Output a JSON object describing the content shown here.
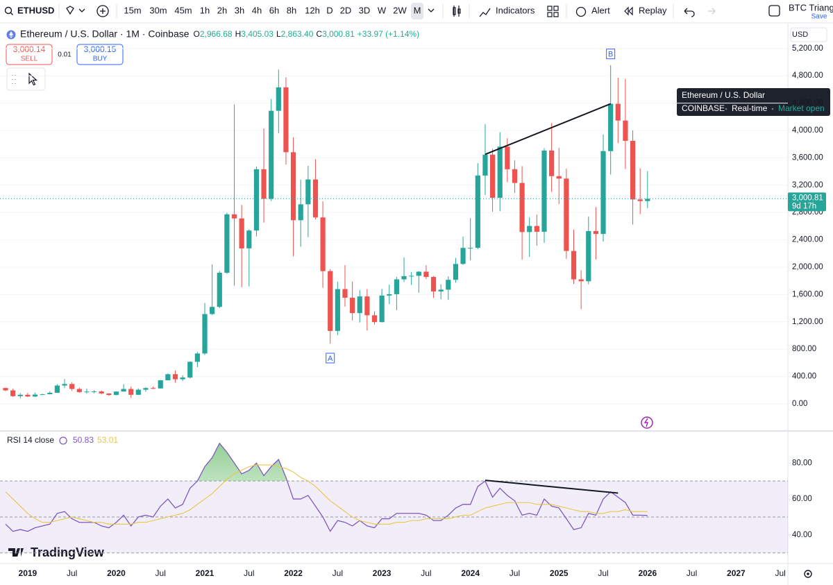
{
  "toolbar": {
    "symbol": "ETHUSD",
    "intervals": [
      "15m",
      "30m",
      "45m",
      "1h",
      "2h",
      "3h",
      "4h",
      "6h",
      "8h",
      "12h",
      "D",
      "2D",
      "3D",
      "W",
      "2W",
      "M"
    ],
    "active_interval": "M",
    "buttons": [
      "Indicators",
      "Alert",
      "Replay"
    ],
    "layout_name": "BTC Triang",
    "save": "Save"
  },
  "quote": {
    "title": "Ethereum / U.S. Dollar · 1M · Coinbase",
    "ohlc": [
      {
        "label": "O",
        "value": "2,966.68"
      },
      {
        "label": "H",
        "value": "3,405.03"
      },
      {
        "label": "L",
        "value": "2,863.40"
      },
      {
        "label": "C",
        "value": "3,000.81"
      }
    ],
    "change": "+33.97 (+1.14%)",
    "sell_price": "3,000.14",
    "sell": "SELL",
    "spread": "0.01",
    "buy_price": "3,000.15",
    "buy": "BUY"
  },
  "tooltip": {
    "title": "Ethereum / U.S. Dollar",
    "exchange": "COINBASE",
    "feed": "Real-time",
    "status": "Market open"
  },
  "currency": "USD",
  "brand": "TradingView",
  "chart_data": [
    {
      "type": "candlestick",
      "x": [
        "2018-10",
        "2018-11",
        "2018-12",
        "2019-01",
        "2019-02",
        "2019-03",
        "2019-04",
        "2019-05",
        "2019-06",
        "2019-07",
        "2019-08",
        "2019-09",
        "2019-10",
        "2019-11",
        "2019-12",
        "2020-01",
        "2020-02",
        "2020-03",
        "2020-04",
        "2020-05",
        "2020-06",
        "2020-07",
        "2020-08",
        "2020-09",
        "2020-10",
        "2020-11",
        "2020-12",
        "2021-01",
        "2021-02",
        "2021-03",
        "2021-04",
        "2021-05",
        "2021-06",
        "2021-07",
        "2021-08",
        "2021-09",
        "2021-10",
        "2021-11",
        "2021-12",
        "2022-01",
        "2022-02",
        "2022-03",
        "2022-04",
        "2022-05",
        "2022-06",
        "2022-07",
        "2022-08",
        "2022-09",
        "2022-10",
        "2022-11",
        "2022-12",
        "2023-01",
        "2023-02",
        "2023-03",
        "2023-04",
        "2023-05",
        "2023-06",
        "2023-07",
        "2023-08",
        "2023-09",
        "2023-10",
        "2023-11",
        "2023-12",
        "2024-01",
        "2024-02",
        "2024-03",
        "2024-04",
        "2024-05",
        "2024-06",
        "2024-07",
        "2024-08",
        "2024-09",
        "2024-10",
        "2024-11",
        "2024-12",
        "2025-01",
        "2025-02",
        "2025-03",
        "2025-04",
        "2025-05",
        "2025-06",
        "2025-07",
        "2025-08",
        "2025-09",
        "2025-10",
        "2025-11",
        "2025-12",
        "2026-01"
      ],
      "open": [
        232,
        197,
        113,
        133,
        107,
        136,
        141,
        162,
        268,
        291,
        218,
        172,
        180,
        182,
        152,
        130,
        180,
        218,
        133,
        207,
        231,
        226,
        345,
        434,
        360,
        386,
        615,
        737,
        1314,
        1419,
        1918,
        2773,
        2713,
        2275,
        2536,
        3433,
        3000,
        4288,
        4631,
        3682,
        2687,
        2920,
        3283,
        2728,
        1942,
        1067,
        1679,
        1553,
        1328,
        1572,
        1296,
        1196,
        1585,
        1605,
        1822,
        1869,
        1874,
        1934,
        1857,
        1645,
        1671,
        1815,
        2047,
        2282,
        2283,
        3340,
        3646,
        3015,
        3763,
        3433,
        3232,
        2514,
        2603,
        2518,
        3706,
        3332,
        3296,
        2237,
        1822,
        1794,
        2528,
        2486,
        3698,
        4390,
        4145,
        3848,
        2991,
        2966.68
      ],
      "high": [
        237,
        222,
        158,
        161,
        165,
        149,
        184,
        287,
        364,
        316,
        237,
        224,
        200,
        196,
        153,
        184,
        288,
        253,
        227,
        245,
        253,
        349,
        446,
        488,
        418,
        623,
        758,
        1476,
        2041,
        1945,
        2796,
        4380,
        2911,
        2554,
        3472,
        4028,
        4460,
        4891,
        4778,
        3900,
        3281,
        3483,
        3580,
        2964,
        1973,
        1788,
        2030,
        1790,
        1664,
        1679,
        1353,
        1680,
        1743,
        1857,
        2142,
        1928,
        1940,
        2029,
        1870,
        1750,
        1865,
        2136,
        2447,
        2717,
        3523,
        4093,
        3730,
        3975,
        3887,
        3562,
        3478,
        2728,
        2770,
        3740,
        4107,
        3745,
        3440,
        2550,
        1955,
        2738,
        2880,
        3941,
        4956,
        4770,
        4755,
        4000,
        3447,
        3405.03
      ],
      "low": [
        187,
        100,
        82,
        100,
        102,
        128,
        139,
        159,
        232,
        190,
        163,
        150,
        155,
        138,
        117,
        127,
        180,
        90,
        130,
        176,
        215,
        225,
        343,
        309,
        334,
        372,
        538,
        715,
        1301,
        1400,
        1902,
        1730,
        1707,
        1718,
        2450,
        2652,
        2970,
        3960,
        3500,
        2158,
        2300,
        2440,
        2700,
        1700,
        880,
        1006,
        1422,
        1220,
        1191,
        1073,
        1161,
        1191,
        1460,
        1370,
        1784,
        1741,
        1626,
        1825,
        1550,
        1531,
        1521,
        1773,
        2035,
        2100,
        2264,
        3056,
        2811,
        2817,
        3245,
        3087,
        2112,
        2150,
        2312,
        2357,
        3100,
        2923,
        2120,
        1755,
        1385,
        1750,
        2110,
        2373,
        3355,
        3815,
        3435,
        2623,
        2775,
        2863.4
      ],
      "close": [
        197,
        113,
        133,
        107,
        136,
        141,
        162,
        268,
        291,
        218,
        172,
        180,
        182,
        152,
        130,
        180,
        218,
        133,
        207,
        231,
        226,
        345,
        434,
        360,
        386,
        615,
        737,
        1314,
        1419,
        1918,
        2773,
        2713,
        2275,
        2536,
        3433,
        3000,
        4288,
        4631,
        3682,
        2687,
        2920,
        3283,
        2728,
        1942,
        1067,
        1679,
        1553,
        1328,
        1572,
        1296,
        1196,
        1585,
        1605,
        1822,
        1869,
        1874,
        1934,
        1857,
        1645,
        1671,
        1815,
        2047,
        2282,
        2283,
        3340,
        3646,
        3015,
        3763,
        3433,
        3232,
        2514,
        2603,
        2518,
        3706,
        3332,
        3296,
        2237,
        1822,
        1794,
        2528,
        2486,
        3698,
        4390,
        4145,
        3848,
        2991,
        2966.68,
        3000.81
      ],
      "up_color": "#26a69a",
      "down_color": "#ef5350",
      "ylim": [
        -386,
        5523
      ],
      "yticks": [
        {
          "value": 0,
          "label": "0.00"
        },
        {
          "value": 400,
          "label": "400.00"
        },
        {
          "value": 800,
          "label": "800.00"
        },
        {
          "value": 1200,
          "label": "1,200.00"
        },
        {
          "value": 1600,
          "label": "1,600.00"
        },
        {
          "value": 2000,
          "label": "2,000.00"
        },
        {
          "value": 2400,
          "label": "2,400.00"
        },
        {
          "value": 2800,
          "label": "2,800.00"
        },
        {
          "value": 3200,
          "label": "3,200.00"
        },
        {
          "value": 3600,
          "label": "3,600.00"
        },
        {
          "value": 4000,
          "label": "4,000.00"
        },
        {
          "value": 4400,
          "label": "4,400.00"
        },
        {
          "value": 4800,
          "label": "4,800.00"
        },
        {
          "value": 5200,
          "label": "5,200.00"
        }
      ],
      "xticks": [
        {
          "value": "2019-01",
          "label": "2019"
        },
        {
          "value": "2019-07",
          "label": "Jul"
        },
        {
          "value": "2020-01",
          "label": "2020"
        },
        {
          "value": "2020-07",
          "label": "Jul"
        },
        {
          "value": "2021-01",
          "label": "2021"
        },
        {
          "value": "2021-07",
          "label": "Jul"
        },
        {
          "value": "2022-01",
          "label": "2022"
        },
        {
          "value": "2022-07",
          "label": "Jul"
        },
        {
          "value": "2023-01",
          "label": "2023"
        },
        {
          "value": "2023-07",
          "label": "Jul"
        },
        {
          "value": "2024-01",
          "label": "2024"
        },
        {
          "value": "2024-07",
          "label": "Jul"
        },
        {
          "value": "2025-01",
          "label": "2025"
        },
        {
          "value": "2025-07",
          "label": "Jul"
        },
        {
          "value": "2026-01",
          "label": "2026"
        },
        {
          "value": "2026-07",
          "label": "Jul"
        },
        {
          "value": "2027-01",
          "label": "2027"
        },
        {
          "value": "2027-07",
          "label": "Jul"
        }
      ],
      "grid": true,
      "last_price_label": "3,000.81",
      "countdown": "9d 17h",
      "annotations": [
        {
          "text": "A",
          "x": "2022-06",
          "y": 670
        },
        {
          "text": "B",
          "x": "2025-08",
          "y": 5120
        }
      ],
      "trend_lines": [
        {
          "x": [
            "2024-03",
            "2025-08"
          ],
          "values": [
            3650,
            4390
          ]
        }
      ]
    },
    {
      "type": "line",
      "title": "RSI 14 close",
      "series": [
        {
          "color": "#7e57c2",
          "values": [
            46,
            42,
            43,
            42,
            44,
            45,
            46,
            52,
            53,
            49,
            47,
            47,
            47,
            45,
            44,
            47,
            51,
            45,
            50,
            51,
            50,
            56,
            60,
            55,
            57,
            66,
            70,
            78,
            83,
            91,
            86,
            80,
            74,
            76,
            80,
            73,
            78,
            82,
            72,
            60,
            60,
            62,
            56,
            50,
            42,
            48,
            47,
            45,
            48,
            45,
            44,
            49,
            49,
            52,
            52,
            52,
            52,
            51,
            48,
            48,
            51,
            55,
            57,
            57,
            67,
            70,
            61,
            66,
            62,
            59,
            51,
            52,
            51,
            60,
            56,
            55,
            49,
            43,
            44,
            52,
            51,
            60,
            64,
            61,
            58,
            51,
            51,
            50.83
          ]
        },
        {
          "color": "#e8c547",
          "values": [
            64,
            60,
            56,
            52,
            49,
            47,
            47,
            48,
            49,
            50,
            49,
            48,
            47,
            47,
            46,
            46,
            46,
            46,
            47,
            47,
            48,
            49,
            50,
            51,
            52,
            54,
            57,
            60,
            63,
            67,
            71,
            74,
            76,
            78,
            79,
            79,
            79,
            78,
            77,
            75,
            72,
            70,
            67,
            63,
            59,
            56,
            53,
            50,
            48,
            47,
            46,
            46,
            46,
            47,
            47,
            48,
            48,
            49,
            49,
            49,
            49,
            50,
            51,
            51,
            53,
            55,
            56,
            57,
            58,
            58,
            58,
            58,
            57,
            57,
            57,
            56,
            55,
            54,
            53,
            53,
            52,
            52,
            53,
            53,
            54,
            53,
            53,
            53.01
          ]
        }
      ],
      "ylim": [
        24.1,
        97.5
      ],
      "yticks": [
        {
          "value": 40,
          "label": "40.00"
        },
        {
          "value": 60,
          "label": "60.00"
        },
        {
          "value": 80,
          "label": "80.00"
        }
      ],
      "bands": [
        30,
        70
      ],
      "midline": 50,
      "trend_lines": [
        {
          "x": [
            "2024-03",
            "2025-09"
          ],
          "values": [
            70.4,
            63.3
          ]
        }
      ]
    }
  ]
}
